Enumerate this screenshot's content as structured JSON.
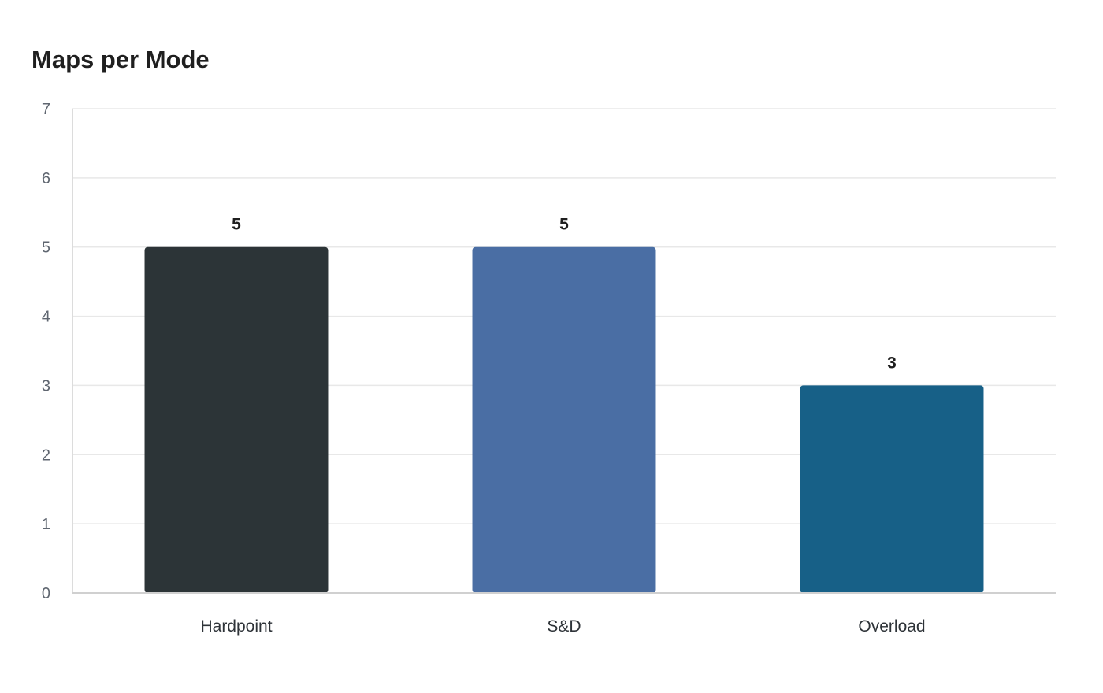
{
  "chart_data": {
    "type": "bar",
    "title": "Maps per Mode",
    "xlabel": "",
    "ylabel": "",
    "categories": [
      "Hardpoint",
      "S&D",
      "Overload"
    ],
    "values": [
      5,
      5,
      3
    ],
    "ylim": [
      0,
      7
    ],
    "yticks": [
      "0",
      "1",
      "2",
      "3",
      "4",
      "5",
      "6",
      "7"
    ],
    "bar_colors": [
      "#2c3437",
      "#4a6ea4",
      "#176087"
    ],
    "data_labels": [
      "5",
      "5",
      "3"
    ],
    "grid": true,
    "legend": "none"
  }
}
